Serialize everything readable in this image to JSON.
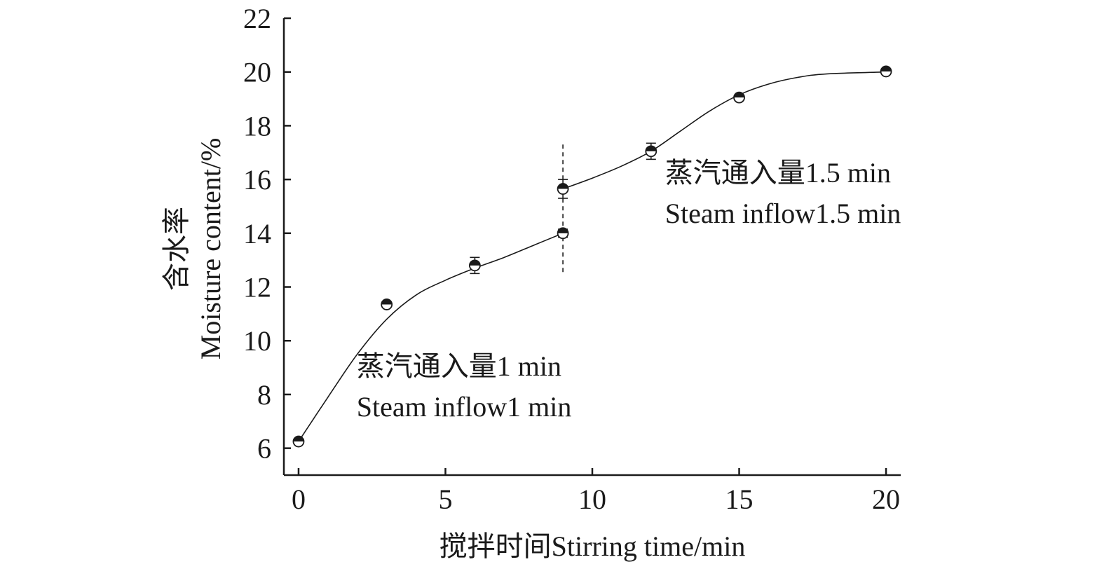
{
  "chart_data": {
    "type": "scatter",
    "title": "",
    "xlabel": "搅拌时间Stirring time/min",
    "ylabel_cn": "含水率",
    "ylabel": "Moisture content/%",
    "xlim": [
      -0.5,
      20.5
    ],
    "ylim": [
      5,
      22
    ],
    "xticks": [
      0,
      5,
      10,
      15,
      20
    ],
    "yticks": [
      6,
      8,
      10,
      12,
      14,
      16,
      18,
      20,
      22
    ],
    "grid": false,
    "points": [
      {
        "x": 0,
        "y": 6.25,
        "err": 0.1
      },
      {
        "x": 3,
        "y": 11.35,
        "err": 0.08
      },
      {
        "x": 6,
        "y": 12.8,
        "err": 0.3
      },
      {
        "x": 9,
        "y": 14.0,
        "err": 0.15
      },
      {
        "x": 9,
        "y": 15.65,
        "err": 0.35
      },
      {
        "x": 12,
        "y": 17.05,
        "err": 0.3
      },
      {
        "x": 15,
        "y": 19.05,
        "err": 0.08
      },
      {
        "x": 20,
        "y": 20.02,
        "err": 0.08
      }
    ],
    "fit_curves": [
      [
        [
          0,
          6.25
        ],
        [
          1,
          7.9
        ],
        [
          2,
          9.5
        ],
        [
          3,
          10.8
        ],
        [
          4,
          11.7
        ],
        [
          5,
          12.25
        ],
        [
          6,
          12.7
        ],
        [
          7,
          13.1
        ],
        [
          8,
          13.55
        ],
        [
          9,
          14.0
        ]
      ],
      [
        [
          9,
          15.65
        ],
        [
          10,
          16.05
        ],
        [
          11,
          16.5
        ],
        [
          12,
          17.05
        ],
        [
          13,
          17.8
        ],
        [
          14,
          18.55
        ],
        [
          15,
          19.15
        ],
        [
          16,
          19.55
        ],
        [
          17,
          19.8
        ],
        [
          18,
          19.93
        ],
        [
          20,
          20.0
        ]
      ]
    ],
    "divider_x": 9,
    "divider_range": [
      12.45,
      17.3
    ],
    "annotations": [
      {
        "line1": "蒸汽通入量1 min",
        "line2": "Steam inflow1 min",
        "x": 2,
        "y": 8.7
      },
      {
        "line1": "蒸汽通入量1.5 min",
        "line2": "Steam inflow1.5 min",
        "x": 12.5,
        "y": 15.9
      }
    ],
    "marker_style": "half-filled circle (top black)",
    "colors": {
      "ink": "#1a1a1a",
      "background": "#ffffff"
    }
  }
}
